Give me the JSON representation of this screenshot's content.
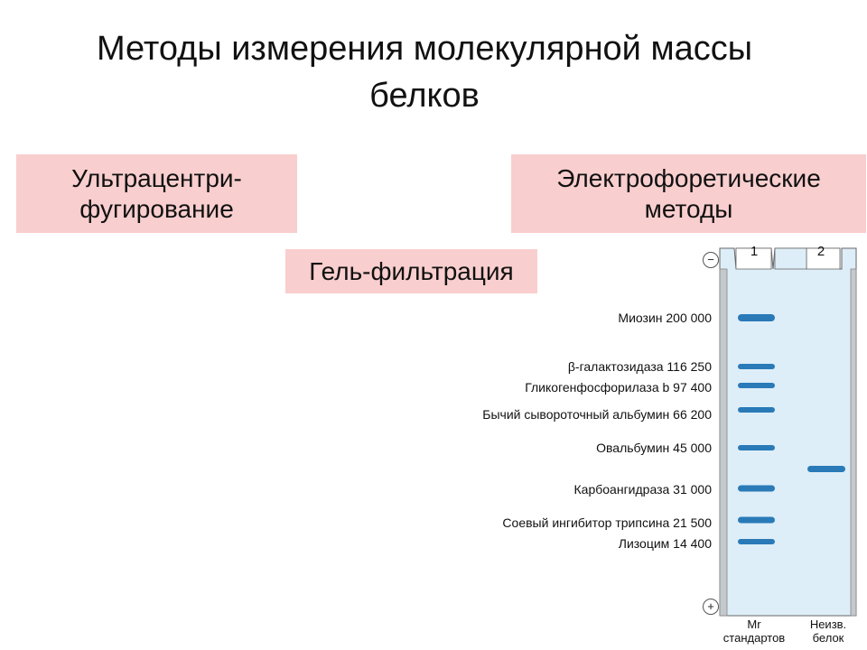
{
  "title": {
    "line1": "Методы измерения молекулярной массы",
    "line2": "белков"
  },
  "methods": {
    "ultracentrifugation": {
      "line1": "Ультрацентри-",
      "line2": "фугирование"
    },
    "electrophoresis": {
      "line1": "Электрофоретические",
      "line2": "методы"
    },
    "gel_filtration": "Гель-фильтрация"
  },
  "gel": {
    "lanes": [
      "1",
      "2"
    ],
    "electrodes": {
      "top": "−",
      "bottom": "+"
    },
    "standards": [
      {
        "label": "Миозин 200 000"
      },
      {
        "label": "β-галактозидаза 116 250"
      },
      {
        "label": "Гликогенфосфорилаза b 97 400"
      },
      {
        "label": "Бычий сывороточный альбумин 66 200"
      },
      {
        "label": "Овальбумин 45 000"
      },
      {
        "label": "Карбоангидраза 31 000"
      },
      {
        "label": "Соевый ингибитор трипсина 21 500"
      },
      {
        "label": "Лизоцим 14 400"
      }
    ],
    "bottom_labels": {
      "lane1": {
        "line1": "Mr",
        "line2": "стандартов"
      },
      "lane2": {
        "line1": "Неизв.",
        "line2": "белок"
      }
    },
    "colors": {
      "gel": "#ddeef8",
      "band": "#2a7ab8",
      "box": "#f9cece"
    }
  }
}
